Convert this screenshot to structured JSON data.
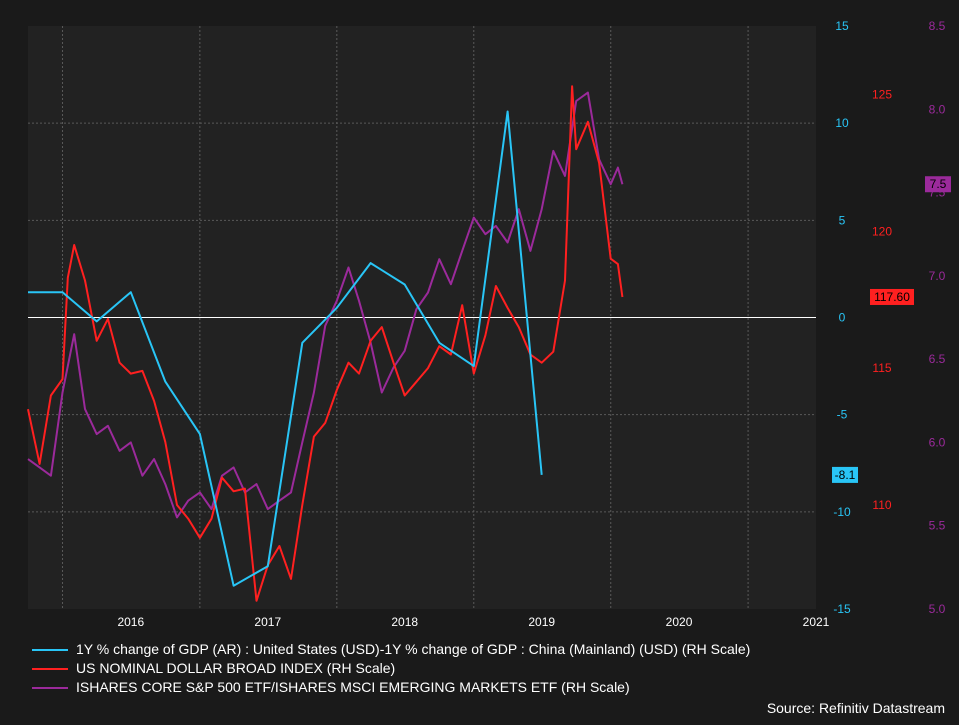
{
  "chart_data": {
    "type": "line",
    "x_ticks": [
      "2016",
      "2017",
      "2018",
      "2019",
      "2020",
      "2021"
    ],
    "axes": {
      "gdp": {
        "range": [
          -15,
          15
        ],
        "ticks": [
          15,
          10,
          5,
          0,
          -5,
          -10,
          -15
        ],
        "color": "#29c5f6"
      },
      "dollar": {
        "range": [
          106.2,
          127.5
        ],
        "ticks": [
          125,
          120,
          115,
          110
        ],
        "color": "#ff2020"
      },
      "ratio": {
        "range": [
          5.0,
          8.5
        ],
        "ticks": [
          8.5,
          8.0,
          7.5,
          7.0,
          6.5,
          6.0,
          5.5,
          5.0
        ],
        "color": "#9b2a9b"
      }
    },
    "series": [
      {
        "name": "1Y % change of GDP (AR) : United States (USD)-1Y % change of GDP : China (Mainland) (USD) (RH Scale)",
        "axis": "gdp",
        "color": "#29c5f6",
        "last_label": "-8.1",
        "points": [
          [
            "2015-10-01",
            1.3
          ],
          [
            "2016-01-01",
            1.3
          ],
          [
            "2016-04-01",
            -0.2
          ],
          [
            "2016-07-01",
            1.3
          ],
          [
            "2016-10-01",
            -3.3
          ],
          [
            "2017-01-01",
            -6.0
          ],
          [
            "2017-04-01",
            -13.8
          ],
          [
            "2017-07-01",
            -12.8
          ],
          [
            "2017-10-01",
            -1.3
          ],
          [
            "2018-01-01",
            0.5
          ],
          [
            "2018-04-01",
            2.8
          ],
          [
            "2018-07-01",
            1.7
          ],
          [
            "2018-10-01",
            -1.3
          ],
          [
            "2019-01-01",
            -2.5
          ],
          [
            "2019-04-01",
            10.6
          ],
          [
            "2019-07-01",
            -8.1
          ]
        ]
      },
      {
        "name": "US NOMINAL DOLLAR BROAD INDEX (RH Scale)",
        "axis": "dollar",
        "color": "#ff2020",
        "last_label": "117.60",
        "points": [
          [
            "2015-10-01",
            113.5
          ],
          [
            "2015-11-01",
            111.5
          ],
          [
            "2015-12-01",
            114.0
          ],
          [
            "2016-01-01",
            114.6
          ],
          [
            "2016-01-15",
            118.3
          ],
          [
            "2016-02-01",
            119.5
          ],
          [
            "2016-03-01",
            118.2
          ],
          [
            "2016-04-01",
            116.0
          ],
          [
            "2016-05-01",
            116.8
          ],
          [
            "2016-06-01",
            115.2
          ],
          [
            "2016-07-01",
            114.8
          ],
          [
            "2016-08-01",
            114.9
          ],
          [
            "2016-09-01",
            113.8
          ],
          [
            "2016-10-01",
            112.3
          ],
          [
            "2016-11-01",
            110.0
          ],
          [
            "2016-12-01",
            109.5
          ],
          [
            "2017-01-01",
            108.8
          ],
          [
            "2017-02-01",
            109.5
          ],
          [
            "2017-03-01",
            111.0
          ],
          [
            "2017-04-01",
            110.5
          ],
          [
            "2017-05-01",
            110.6
          ],
          [
            "2017-06-01",
            106.5
          ],
          [
            "2017-07-01",
            107.8
          ],
          [
            "2017-08-01",
            108.5
          ],
          [
            "2017-09-01",
            107.3
          ],
          [
            "2017-10-01",
            110.0
          ],
          [
            "2017-11-01",
            112.5
          ],
          [
            "2017-12-01",
            113.0
          ],
          [
            "2018-01-01",
            114.2
          ],
          [
            "2018-02-01",
            115.2
          ],
          [
            "2018-03-01",
            114.8
          ],
          [
            "2018-04-01",
            116.0
          ],
          [
            "2018-05-01",
            116.5
          ],
          [
            "2018-06-01",
            115.2
          ],
          [
            "2018-07-01",
            114.0
          ],
          [
            "2018-08-01",
            114.5
          ],
          [
            "2018-09-01",
            115.0
          ],
          [
            "2018-10-01",
            115.8
          ],
          [
            "2018-11-01",
            115.5
          ],
          [
            "2018-12-01",
            117.3
          ],
          [
            "2019-01-01",
            114.8
          ],
          [
            "2019-02-01",
            116.2
          ],
          [
            "2019-03-01",
            118.0
          ],
          [
            "2019-04-01",
            117.2
          ],
          [
            "2019-05-01",
            116.5
          ],
          [
            "2019-06-01",
            115.5
          ],
          [
            "2019-07-01",
            115.2
          ],
          [
            "2019-08-01",
            115.6
          ],
          [
            "2019-09-01",
            118.2
          ],
          [
            "2019-09-20",
            125.3
          ],
          [
            "2019-10-01",
            123.0
          ],
          [
            "2019-11-01",
            124.0
          ],
          [
            "2019-12-01",
            122.5
          ],
          [
            "2020-01-01",
            119.0
          ],
          [
            "2020-01-20",
            118.8
          ],
          [
            "2020-02-01",
            117.6
          ]
        ]
      },
      {
        "name": "ISHARES CORE S&P 500 ETF/ISHARES MSCI EMERGING MARKETS ETF (RH Scale)",
        "axis": "ratio",
        "color": "#9b2a9b",
        "last_label": "7.5",
        "points": [
          [
            "2015-10-01",
            5.9
          ],
          [
            "2015-11-01",
            5.85
          ],
          [
            "2015-12-01",
            5.8
          ],
          [
            "2016-01-01",
            6.3
          ],
          [
            "2016-02-01",
            6.65
          ],
          [
            "2016-03-01",
            6.2
          ],
          [
            "2016-04-01",
            6.05
          ],
          [
            "2016-05-01",
            6.1
          ],
          [
            "2016-06-01",
            5.95
          ],
          [
            "2016-07-01",
            6.0
          ],
          [
            "2016-08-01",
            5.8
          ],
          [
            "2016-09-01",
            5.9
          ],
          [
            "2016-10-01",
            5.75
          ],
          [
            "2016-11-01",
            5.55
          ],
          [
            "2016-12-01",
            5.65
          ],
          [
            "2017-01-01",
            5.7
          ],
          [
            "2017-02-01",
            5.6
          ],
          [
            "2017-03-01",
            5.8
          ],
          [
            "2017-04-01",
            5.85
          ],
          [
            "2017-05-01",
            5.7
          ],
          [
            "2017-06-01",
            5.75
          ],
          [
            "2017-07-01",
            5.6
          ],
          [
            "2017-08-01",
            5.65
          ],
          [
            "2017-09-01",
            5.7
          ],
          [
            "2017-10-01",
            6.0
          ],
          [
            "2017-11-01",
            6.3
          ],
          [
            "2017-12-01",
            6.7
          ],
          [
            "2018-01-01",
            6.85
          ],
          [
            "2018-02-01",
            7.05
          ],
          [
            "2018-03-01",
            6.85
          ],
          [
            "2018-04-01",
            6.6
          ],
          [
            "2018-05-01",
            6.3
          ],
          [
            "2018-06-01",
            6.45
          ],
          [
            "2018-07-01",
            6.55
          ],
          [
            "2018-08-01",
            6.8
          ],
          [
            "2018-09-01",
            6.9
          ],
          [
            "2018-10-01",
            7.1
          ],
          [
            "2018-11-01",
            6.95
          ],
          [
            "2018-12-01",
            7.15
          ],
          [
            "2019-01-01",
            7.35
          ],
          [
            "2019-02-01",
            7.25
          ],
          [
            "2019-03-01",
            7.3
          ],
          [
            "2019-04-01",
            7.2
          ],
          [
            "2019-05-01",
            7.4
          ],
          [
            "2019-06-01",
            7.15
          ],
          [
            "2019-07-01",
            7.4
          ],
          [
            "2019-08-01",
            7.75
          ],
          [
            "2019-09-01",
            7.6
          ],
          [
            "2019-10-01",
            8.05
          ],
          [
            "2019-11-01",
            8.1
          ],
          [
            "2019-12-01",
            7.7
          ],
          [
            "2020-01-01",
            7.55
          ],
          [
            "2020-01-20",
            7.65
          ],
          [
            "2020-02-01",
            7.55
          ]
        ]
      }
    ],
    "source": "Source: Refinitiv Datastream"
  }
}
